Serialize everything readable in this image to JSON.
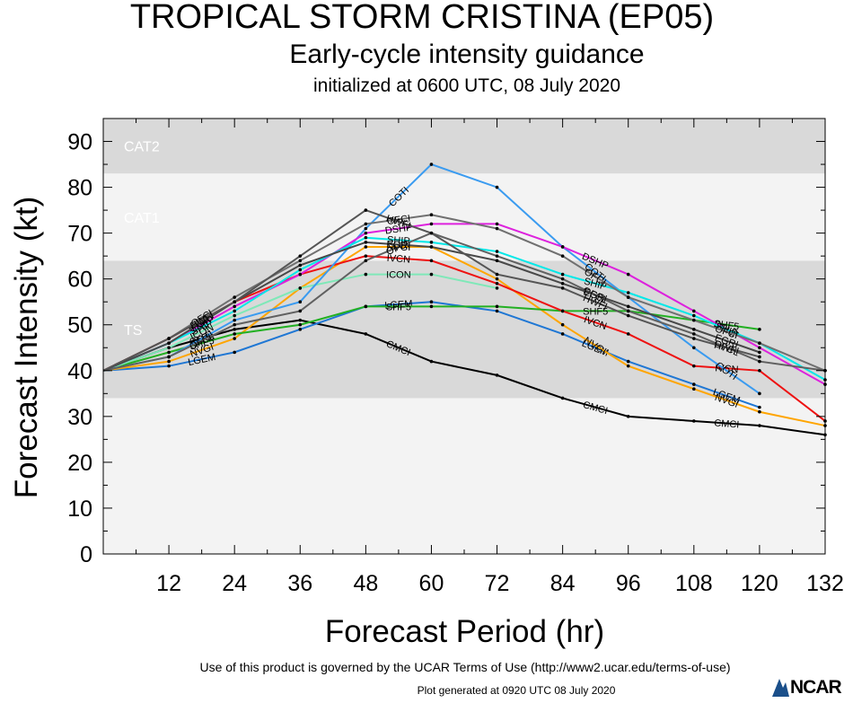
{
  "title": "TROPICAL STORM CRISTINA (EP05)",
  "subtitle": "Early-cycle intensity guidance",
  "initialized": "initialized at 0600 UTC, 08 July 2020",
  "terms": "Use of this product is governed by the UCAR Terms of Use (http://www2.ucar.edu/terms-of-use)",
  "generated": "Plot generated at 0920 UTC   08 July 2020",
  "logo_text": "NCAR",
  "chart_data": {
    "type": "line",
    "xlabel": "Forecast Period (hr)",
    "ylabel": "Forecast Intensity (kt)",
    "xlim": [
      0,
      132
    ],
    "ylim": [
      0,
      95
    ],
    "xticks": [
      12,
      24,
      36,
      48,
      60,
      72,
      84,
      96,
      108,
      120,
      132
    ],
    "yticks": [
      0,
      10,
      20,
      30,
      40,
      50,
      60,
      70,
      80,
      90
    ],
    "bands": [
      {
        "label": "TS",
        "from": 34,
        "to": 64,
        "color": "#d9d9d9"
      },
      {
        "label": "CAT1",
        "from": 64,
        "to": 83,
        "color": "#f3f3f3"
      },
      {
        "label": "CAT2",
        "from": 83,
        "to": 96,
        "color": "#d9d9d9"
      }
    ],
    "below_band_color": "#f3f3f3",
    "series": [
      {
        "name": "CMCI",
        "color": "#000000",
        "x": [
          0,
          12,
          24,
          36,
          48,
          60,
          72,
          84,
          96,
          108,
          120,
          132
        ],
        "y": [
          40,
          45,
          49,
          51,
          48,
          42,
          39,
          34,
          30,
          29,
          28,
          26
        ]
      },
      {
        "name": "LGEM",
        "color": "#1f77d4",
        "x": [
          0,
          12,
          24,
          36,
          48,
          60,
          72,
          84,
          96,
          108,
          120
        ],
        "y": [
          40,
          41,
          44,
          49,
          54,
          55,
          53,
          48,
          42,
          37,
          32
        ]
      },
      {
        "name": "NVGI",
        "color": "#ffa500",
        "x": [
          0,
          12,
          24,
          36,
          48,
          60,
          72,
          84,
          96,
          108,
          120,
          132
        ],
        "y": [
          40,
          42,
          47,
          58,
          67,
          67,
          60,
          50,
          41,
          36,
          31,
          28
        ]
      },
      {
        "name": "SHF5",
        "color": "#22b022",
        "x": [
          0,
          12,
          24,
          36,
          48,
          60,
          72,
          84,
          96,
          108,
          120
        ],
        "y": [
          40,
          44,
          48,
          50,
          54,
          54,
          54,
          53,
          53,
          51,
          49
        ]
      },
      {
        "name": "IVCN",
        "color": "#ee1111",
        "x": [
          0,
          12,
          24,
          36,
          48,
          60,
          72,
          84,
          96,
          108,
          120,
          132
        ],
        "y": [
          40,
          47,
          55,
          61,
          65,
          64,
          59,
          53,
          48,
          41,
          40,
          29
        ]
      },
      {
        "name": "ICON",
        "color": "#7fe8b8",
        "x": [
          0,
          12,
          24,
          36,
          48,
          60,
          72
        ],
        "y": [
          40,
          45,
          52,
          58,
          61,
          61,
          58
        ]
      },
      {
        "name": "COTI",
        "color": "#3a9bf0",
        "x": [
          0,
          12,
          24,
          36,
          48,
          60,
          72,
          84,
          96,
          108,
          120
        ],
        "y": [
          40,
          43,
          51,
          55,
          71,
          85,
          80,
          67,
          56,
          45,
          35
        ]
      },
      {
        "name": "DSHP",
        "color": "#dd22dd",
        "x": [
          0,
          12,
          24,
          36,
          48,
          60,
          72,
          84,
          96,
          108,
          120,
          132
        ],
        "y": [
          40,
          46,
          54,
          61,
          70,
          72,
          72,
          67,
          61,
          53,
          45,
          37
        ]
      },
      {
        "name": "SHIP",
        "color": "#00e8e8",
        "x": [
          0,
          12,
          24,
          36,
          48,
          60,
          72,
          84,
          96,
          108,
          120,
          132
        ],
        "y": [
          40,
          46,
          53,
          62,
          69,
          68,
          66,
          61,
          57,
          52,
          46,
          38
        ]
      },
      {
        "name": "OFCI",
        "color": "#707070",
        "x": [
          0,
          12,
          24,
          36,
          48,
          60,
          72,
          84,
          96,
          108,
          120,
          132
        ],
        "y": [
          40,
          47,
          56,
          64,
          72,
          74,
          71,
          65,
          56,
          51,
          46,
          40
        ]
      },
      {
        "name": "OFCL",
        "color": "#606060",
        "x": [
          0,
          12,
          24,
          36,
          48,
          60,
          72,
          84,
          96,
          108,
          120,
          132
        ],
        "y": [
          40,
          43,
          50,
          53,
          64,
          70,
          65,
          60,
          53,
          48,
          42,
          40
        ]
      },
      {
        "name": "EGRI",
        "color": "#484848",
        "x": [
          0,
          12,
          24,
          36,
          48,
          60,
          72,
          84,
          96,
          108,
          120
        ],
        "y": [
          40,
          46,
          55,
          63,
          68,
          67,
          64,
          59,
          54,
          49,
          44
        ]
      },
      {
        "name": "HWFI",
        "color": "#555555",
        "x": [
          0,
          12,
          24,
          36,
          48,
          60,
          72,
          84,
          96,
          108,
          120
        ],
        "y": [
          40,
          47,
          55,
          65,
          75,
          70,
          61,
          58,
          52,
          47,
          43
        ]
      }
    ]
  }
}
